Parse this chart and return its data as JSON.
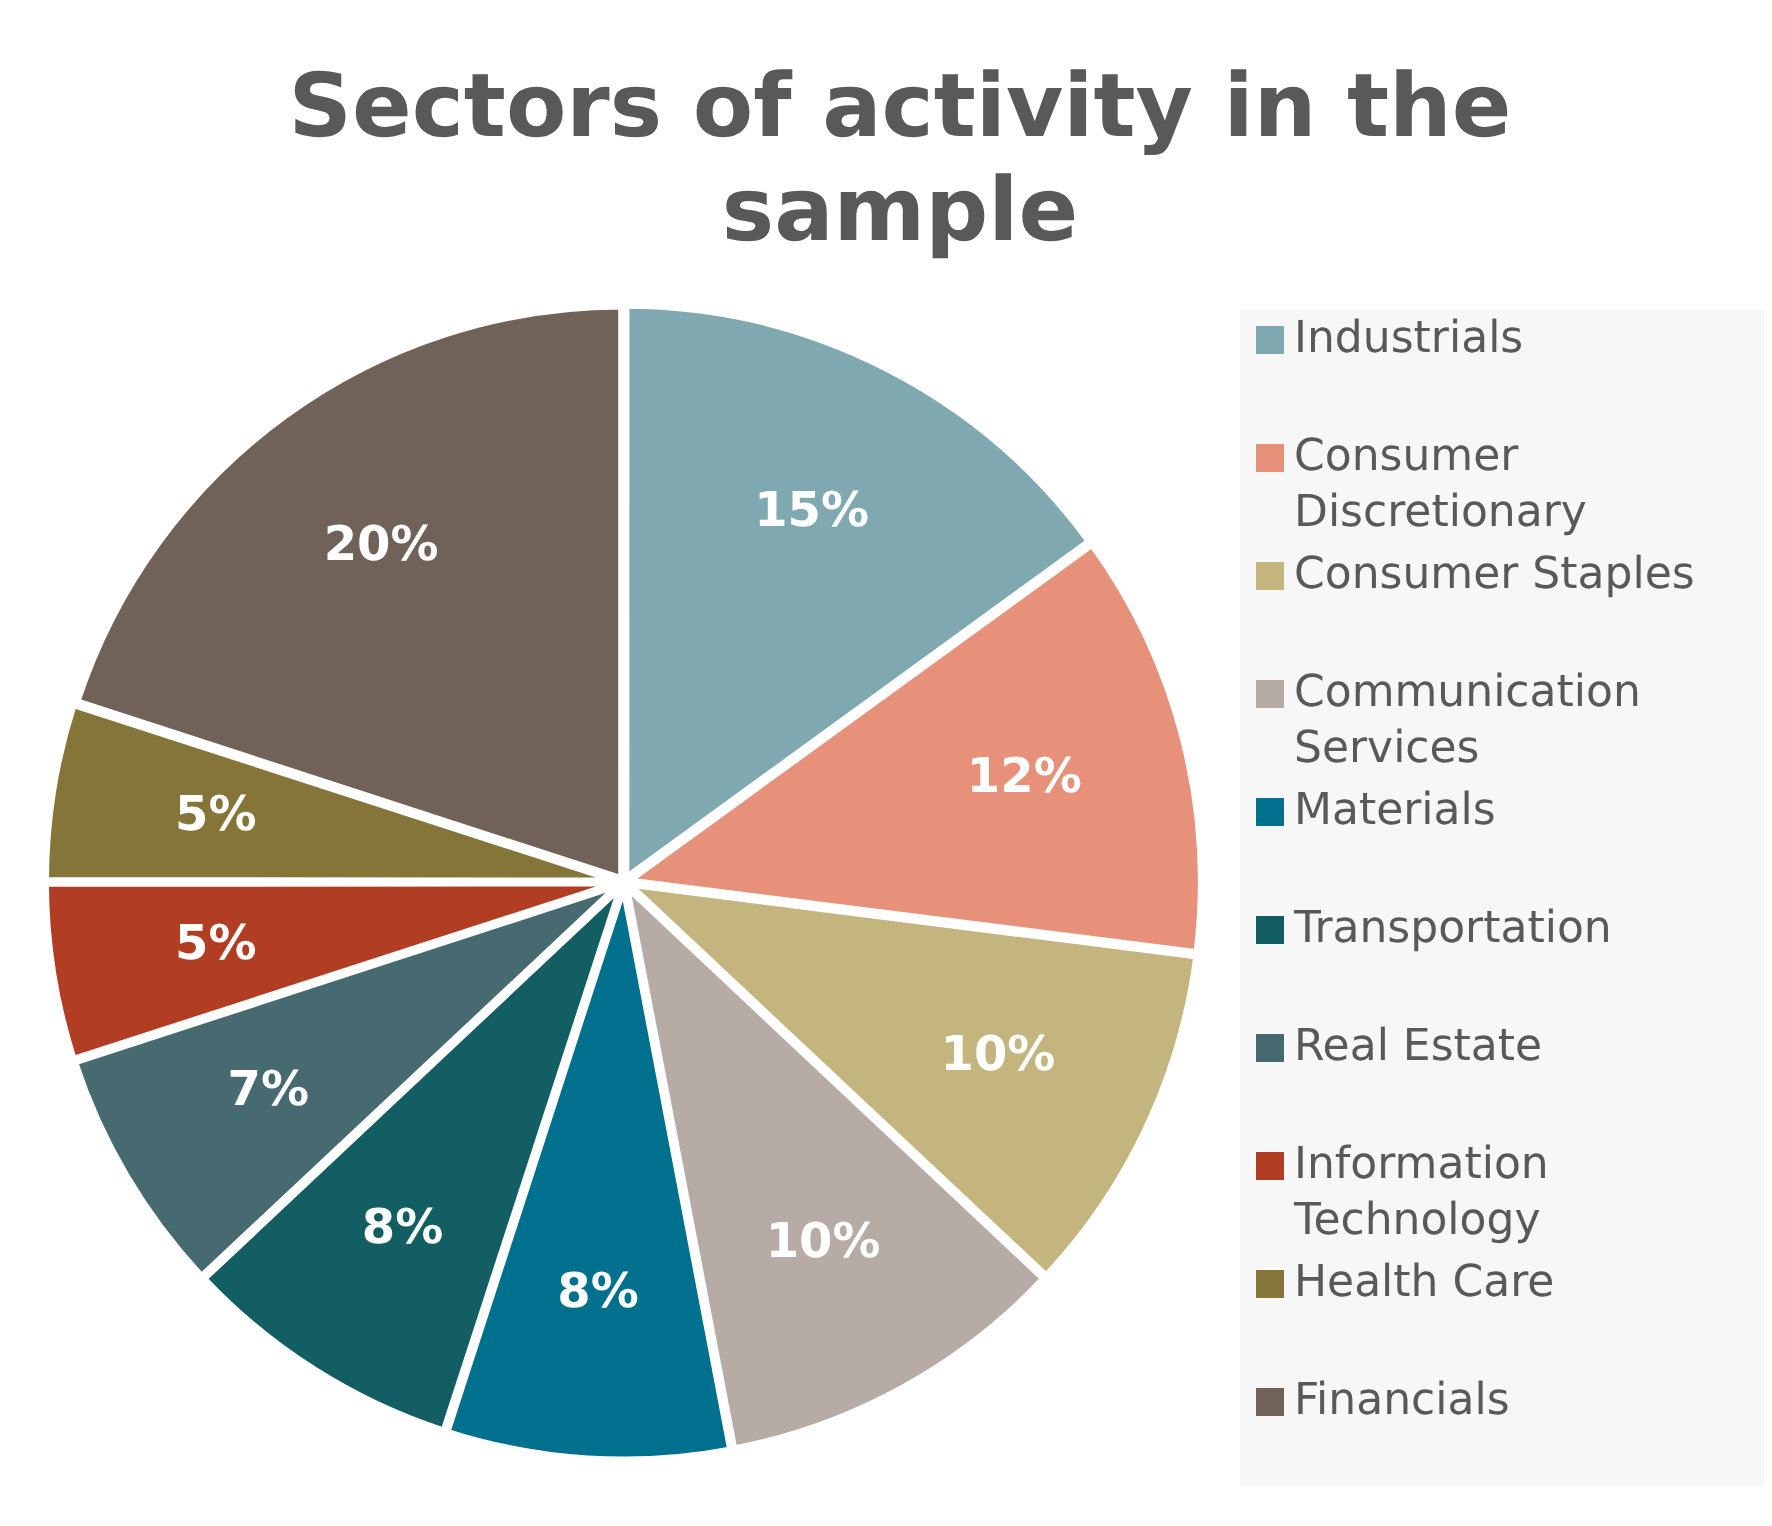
{
  "chart_data": {
    "type": "pie",
    "title": "Sectors of activity in the sample",
    "categories": [
      "Industrials",
      "Consumer Discretionary",
      "Consumer Staples",
      "Communication Services",
      "Materials",
      "Transportation",
      "Real Estate",
      "Information Technology",
      "Health Care",
      "Financials"
    ],
    "values": [
      15,
      12,
      10,
      10,
      8,
      8,
      7,
      5,
      5,
      20
    ],
    "value_labels": [
      "15%",
      "12%",
      "10%",
      "10%",
      "8%",
      "8%",
      "7%",
      "5%",
      "5%",
      "20%"
    ],
    "colors": [
      "#7fa8b0",
      "#e8917a",
      "#c4b47e",
      "#b6aca5",
      "#00708f",
      "#135e63",
      "#466a70",
      "#b13d22",
      "#857539",
      "#706259"
    ],
    "legend": "right"
  }
}
